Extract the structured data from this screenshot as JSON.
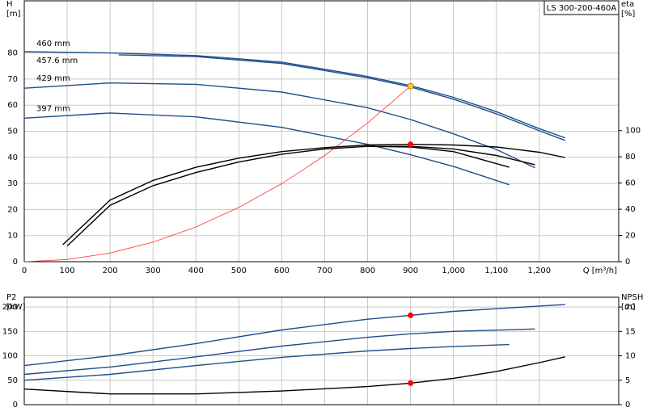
{
  "chart_data": [
    {
      "type": "line",
      "model_label": "LS 300-200-460A",
      "y_label": "H",
      "y_unit": "[m]",
      "y2_label": "eta",
      "y2_unit": "[%]",
      "x_label": "Q [m³/h]",
      "xlim": [
        0,
        1385
      ],
      "ylim": [
        0,
        100
      ],
      "y2lim": [
        0,
        199
      ],
      "xticks": [
        0,
        100,
        200,
        300,
        400,
        500,
        600,
        700,
        800,
        900,
        {
          "value": 1000,
          "label": "1,000"
        },
        {
          "value": 1100,
          "label": "1,100"
        },
        {
          "value": 1200,
          "label": "1,200"
        }
      ],
      "yticks": [
        0,
        10,
        20,
        30,
        40,
        50,
        60,
        70,
        80
      ],
      "y2ticks": [
        0,
        20,
        40,
        60,
        80,
        100
      ],
      "grid": true,
      "series": [
        {
          "name": "460 mm",
          "color": "#1f4e8c",
          "x": [
            0,
            200,
            400,
            600,
            800,
            900,
            1000,
            1100,
            1200,
            1260
          ],
          "values": [
            80.5,
            80,
            79,
            76.5,
            71,
            67.5,
            63,
            57.5,
            51,
            47.5
          ]
        },
        {
          "name": "457.6 mm",
          "color": "#1f4e8c",
          "x": [
            220,
            400,
            600,
            800,
            900,
            1000,
            1100,
            1200,
            1260
          ],
          "values": [
            79.3,
            78.6,
            76,
            70.5,
            67,
            62.3,
            56.7,
            50.2,
            46.5
          ]
        },
        {
          "name": "429 mm",
          "color": "#1f4e8c",
          "x": [
            0,
            200,
            400,
            600,
            800,
            900,
            1000,
            1100,
            1190
          ],
          "values": [
            66.5,
            68.5,
            68,
            65,
            59,
            54.5,
            49,
            43,
            36
          ]
        },
        {
          "name": "397 mm",
          "color": "#1f4e8c",
          "x": [
            0,
            200,
            400,
            600,
            800,
            900,
            1000,
            1130
          ],
          "values": [
            55,
            57,
            55.5,
            51.5,
            45,
            41,
            36.5,
            29.5
          ]
        },
        {
          "color": "#ff3333",
          "x": [
            0,
            100,
            200,
            300,
            400,
            500,
            600,
            700,
            800,
            900
          ],
          "values": [
            0,
            0.83,
            3.3,
            7.5,
            13.3,
            20.8,
            29.9,
            40.7,
            53.2,
            67.3
          ]
        },
        {
          "color": "#000000",
          "axis": "y2",
          "x": [
            90,
            200,
            300,
            400,
            500,
            600,
            700,
            800,
            900,
            1000,
            1100,
            1200,
            1260
          ],
          "values": [
            13,
            47,
            62,
            72,
            79,
            84,
            87,
            89,
            89.5,
            89,
            87.5,
            83.5,
            79.5
          ]
        },
        {
          "color": "#000000",
          "axis": "y2",
          "x": [
            100,
            200,
            300,
            400,
            500,
            600,
            700,
            800,
            900,
            1000,
            1100,
            1190
          ],
          "values": [
            12,
            43,
            58,
            68,
            76,
            82,
            86,
            88,
            88,
            86,
            81,
            74
          ]
        },
        {
          "color": "#000000",
          "axis": "y2",
          "x": [
            800,
            900,
            1000,
            1130
          ],
          "values": [
            88,
            87.5,
            84,
            72
          ]
        },
        {
          "color": "#ffcc33",
          "marker": true,
          "x": [
            900
          ],
          "values": [
            67.3
          ]
        },
        {
          "color": "#ff0000",
          "marker": true,
          "axis": "y2",
          "x": [
            900
          ],
          "values": [
            89.5
          ]
        }
      ]
    },
    {
      "type": "line",
      "y_label": "P2",
      "y_unit": "[kW]",
      "y2_label": "NPSH",
      "y2_unit": "[m]",
      "xlim": [
        0,
        1385
      ],
      "ylim": [
        0,
        220
      ],
      "y2lim": [
        0,
        22
      ],
      "yticks": [
        0,
        50,
        100,
        150,
        200
      ],
      "y2ticks": [
        0,
        5,
        10,
        15,
        20
      ],
      "grid": true,
      "series": [
        {
          "color": "#1f4e8c",
          "x": [
            0,
            200,
            400,
            600,
            800,
            900,
            1000,
            1200,
            1260
          ],
          "values": [
            80,
            100,
            125,
            153,
            175,
            183,
            191,
            202,
            205
          ]
        },
        {
          "color": "#1f4e8c",
          "x": [
            0,
            200,
            400,
            600,
            800,
            900,
            1000,
            1190
          ],
          "values": [
            62,
            77,
            98,
            120,
            138,
            145,
            150,
            155
          ]
        },
        {
          "color": "#1f4e8c",
          "x": [
            0,
            200,
            400,
            600,
            800,
            900,
            1000,
            1130
          ],
          "values": [
            50,
            62,
            80,
            97,
            110,
            115,
            119,
            123
          ]
        },
        {
          "color": "#000000",
          "axis": "y2",
          "x": [
            0,
            200,
            400,
            600,
            800,
            900,
            1000,
            1100,
            1200,
            1260
          ],
          "values": [
            3.2,
            2.2,
            2.2,
            2.8,
            3.7,
            4.4,
            5.4,
            6.8,
            8.6,
            9.8
          ]
        },
        {
          "color": "#ff0000",
          "marker": true,
          "x": [
            900
          ],
          "values": [
            183
          ]
        },
        {
          "color": "#ff0000",
          "marker": true,
          "axis": "y2",
          "x": [
            900
          ],
          "values": [
            4.4
          ]
        }
      ]
    }
  ]
}
